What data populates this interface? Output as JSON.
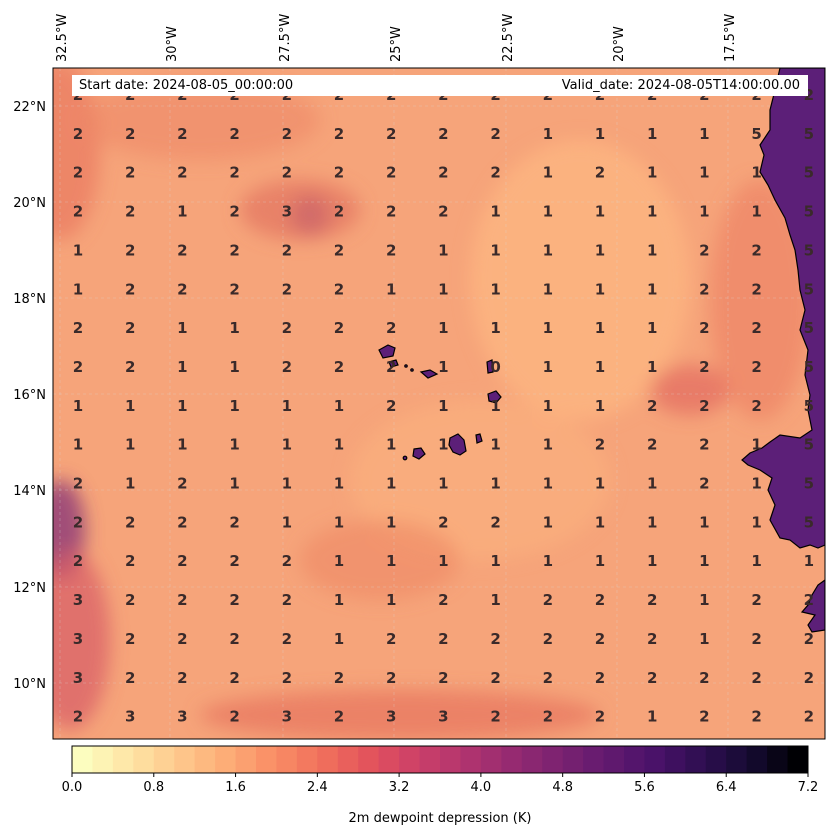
{
  "header": {
    "start_date": "Start date: 2024-08-05_00:00:00",
    "valid_date": "Valid_date: 2024-08-05T14:00:00.00"
  },
  "map": {
    "lon_labels": [
      "32.5°W",
      "30°W",
      "27.5°W",
      "25°W",
      "22.5°W",
      "20°W",
      "17.5°W"
    ],
    "lat_labels": [
      "22°N",
      "20°N",
      "18°N",
      "16°N",
      "14°N",
      "12°N",
      "10°N"
    ],
    "land_color": "#5c1f78",
    "base_field_color": "#f8a57a",
    "values": [
      [
        "2",
        "2",
        "2",
        "2",
        "2",
        "2",
        "2",
        "2",
        "2",
        "2",
        "2",
        "2",
        "2",
        "2",
        "2"
      ],
      [
        "2",
        "2",
        "2",
        "2",
        "2",
        "2",
        "2",
        "2",
        "2",
        "1",
        "1",
        "1",
        "1",
        "5",
        "5"
      ],
      [
        "2",
        "2",
        "2",
        "2",
        "2",
        "2",
        "2",
        "2",
        "2",
        "1",
        "2",
        "1",
        "1",
        "1",
        "5"
      ],
      [
        "2",
        "2",
        "1",
        "2",
        "3",
        "2",
        "2",
        "2",
        "1",
        "1",
        "1",
        "1",
        "1",
        "1",
        "5"
      ],
      [
        "1",
        "2",
        "2",
        "2",
        "2",
        "2",
        "2",
        "1",
        "1",
        "1",
        "1",
        "1",
        "2",
        "2",
        "5"
      ],
      [
        "1",
        "2",
        "2",
        "2",
        "2",
        "2",
        "1",
        "1",
        "1",
        "1",
        "1",
        "1",
        "2",
        "2",
        "5"
      ],
      [
        "2",
        "2",
        "1",
        "1",
        "2",
        "2",
        "2",
        "1",
        "1",
        "1",
        "1",
        "1",
        "2",
        "2",
        "5"
      ],
      [
        "2",
        "2",
        "1",
        "1",
        "2",
        "2",
        "2",
        "1",
        "0",
        "1",
        "1",
        "1",
        "2",
        "2",
        "5"
      ],
      [
        "1",
        "1",
        "1",
        "1",
        "1",
        "1",
        "2",
        "1",
        "1",
        "1",
        "1",
        "2",
        "2",
        "2",
        "5"
      ],
      [
        "1",
        "1",
        "1",
        "1",
        "1",
        "1",
        "1",
        "1",
        "1",
        "1",
        "2",
        "2",
        "2",
        "1",
        "5"
      ],
      [
        "2",
        "1",
        "2",
        "1",
        "1",
        "1",
        "1",
        "1",
        "1",
        "1",
        "1",
        "1",
        "2",
        "1",
        "5"
      ],
      [
        "2",
        "2",
        "2",
        "2",
        "1",
        "1",
        "1",
        "2",
        "2",
        "1",
        "1",
        "1",
        "1",
        "1",
        "5"
      ],
      [
        "2",
        "2",
        "2",
        "2",
        "2",
        "1",
        "1",
        "1",
        "1",
        "1",
        "1",
        "1",
        "1",
        "1",
        "1"
      ],
      [
        "3",
        "2",
        "2",
        "2",
        "2",
        "1",
        "1",
        "2",
        "1",
        "2",
        "2",
        "2",
        "1",
        "2",
        "2"
      ],
      [
        "3",
        "2",
        "2",
        "2",
        "2",
        "1",
        "2",
        "2",
        "2",
        "2",
        "2",
        "2",
        "1",
        "2",
        "2"
      ],
      [
        "3",
        "2",
        "2",
        "2",
        "2",
        "2",
        "2",
        "2",
        "2",
        "2",
        "2",
        "2",
        "2",
        "2",
        "2"
      ],
      [
        "2",
        "3",
        "3",
        "2",
        "3",
        "2",
        "3",
        "3",
        "2",
        "2",
        "2",
        "1",
        "2",
        "2",
        "2"
      ]
    ]
  },
  "colorbar": {
    "title": "2m dewpoint depression (K)",
    "tick_labels": [
      "0.0",
      "0.8",
      "1.6",
      "2.4",
      "3.2",
      "4.0",
      "4.8",
      "5.6",
      "6.4",
      "7.2"
    ],
    "min": 0,
    "max": 7.2,
    "colors": [
      "#fcfdbf",
      "#fee5a5",
      "#fec98d",
      "#fdad77",
      "#f98e66",
      "#f1715c",
      "#e3545c",
      "#cd4068",
      "#b2356f",
      "#962a71",
      "#7b2271",
      "#621a6f",
      "#4a1269",
      "#2e0e51",
      "#150b31",
      "#000004"
    ]
  }
}
